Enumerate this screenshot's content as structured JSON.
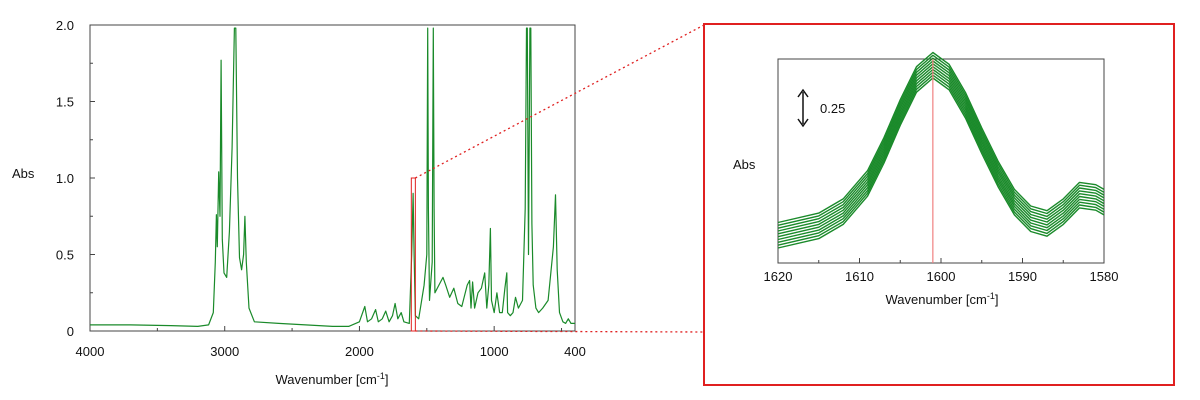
{
  "chart_data": [
    {
      "type": "line",
      "title": "",
      "xlabel": "Wavenumber [cm",
      "xlabel_sup": "-1",
      "xlabel_end": "]",
      "ylabel": "Abs",
      "xlim": [
        4000,
        400
      ],
      "ylim": [
        0,
        2.0
      ],
      "x_ticks": [
        "4000",
        "3000",
        "2000",
        "1000",
        "400"
      ],
      "x_tick_values": [
        4000,
        3000,
        2000,
        1000,
        400
      ],
      "y_ticks": [
        "0",
        "0.5",
        "1.0",
        "1.5",
        "2.0"
      ],
      "y_tick_values": [
        0,
        0.5,
        1.0,
        1.5,
        2.0
      ],
      "grid": false,
      "series": [
        {
          "color": "#1a8a2a",
          "points": [
            [
              4000,
              0.04
            ],
            [
              3700,
              0.04
            ],
            [
              3400,
              0.035
            ],
            [
              3200,
              0.03
            ],
            [
              3120,
              0.04
            ],
            [
              3085,
              0.12
            ],
            [
              3070,
              0.45
            ],
            [
              3062,
              0.76
            ],
            [
              3055,
              0.55
            ],
            [
              3045,
              1.04
            ],
            [
              3035,
              0.75
            ],
            [
              3027,
              1.77
            ],
            [
              3018,
              0.6
            ],
            [
              3005,
              0.38
            ],
            [
              2985,
              0.35
            ],
            [
              2965,
              0.65
            ],
            [
              2945,
              1.2
            ],
            [
              2928,
              1.98
            ],
            [
              2918,
              1.98
            ],
            [
              2905,
              1.0
            ],
            [
              2890,
              0.48
            ],
            [
              2875,
              0.4
            ],
            [
              2860,
              0.5
            ],
            [
              2850,
              0.75
            ],
            [
              2840,
              0.45
            ],
            [
              2820,
              0.15
            ],
            [
              2780,
              0.06
            ],
            [
              2600,
              0.05
            ],
            [
              2400,
              0.04
            ],
            [
              2200,
              0.03
            ],
            [
              2080,
              0.03
            ],
            [
              2000,
              0.06
            ],
            [
              1960,
              0.16
            ],
            [
              1940,
              0.06
            ],
            [
              1910,
              0.08
            ],
            [
              1880,
              0.14
            ],
            [
              1860,
              0.06
            ],
            [
              1830,
              0.08
            ],
            [
              1805,
              0.13
            ],
            [
              1780,
              0.06
            ],
            [
              1755,
              0.1
            ],
            [
              1735,
              0.18
            ],
            [
              1715,
              0.08
            ],
            [
              1690,
              0.12
            ],
            [
              1670,
              0.06
            ],
            [
              1630,
              0.05
            ],
            [
              1612,
              0.5
            ],
            [
              1602,
              0.9
            ],
            [
              1594,
              0.5
            ],
            [
              1585,
              0.1
            ],
            [
              1560,
              0.08
            ],
            [
              1520,
              0.3
            ],
            [
              1500,
              0.5
            ],
            [
              1493,
              1.98
            ],
            [
              1488,
              0.8
            ],
            [
              1480,
              0.2
            ],
            [
              1460,
              0.45
            ],
            [
              1452,
              1.98
            ],
            [
              1446,
              0.8
            ],
            [
              1440,
              0.25
            ],
            [
              1410,
              0.3
            ],
            [
              1380,
              0.35
            ],
            [
              1360,
              0.3
            ],
            [
              1330,
              0.22
            ],
            [
              1300,
              0.28
            ],
            [
              1270,
              0.18
            ],
            [
              1240,
              0.16
            ],
            [
              1200,
              0.3
            ],
            [
              1182,
              0.33
            ],
            [
              1172,
              0.15
            ],
            [
              1160,
              0.32
            ],
            [
              1145,
              0.15
            ],
            [
              1120,
              0.25
            ],
            [
              1095,
              0.28
            ],
            [
              1070,
              0.38
            ],
            [
              1055,
              0.15
            ],
            [
              1040,
              0.3
            ],
            [
              1028,
              0.67
            ],
            [
              1020,
              0.2
            ],
            [
              1000,
              0.12
            ],
            [
              980,
              0.25
            ],
            [
              960,
              0.12
            ],
            [
              940,
              0.12
            ],
            [
              920,
              0.28
            ],
            [
              906,
              0.38
            ],
            [
              900,
              0.12
            ],
            [
              880,
              0.1
            ],
            [
              860,
              0.12
            ],
            [
              842,
              0.22
            ],
            [
              820,
              0.15
            ],
            [
              790,
              0.2
            ],
            [
              770,
              0.8
            ],
            [
              760,
              1.98
            ],
            [
              754,
              1.98
            ],
            [
              745,
              0.5
            ],
            [
              735,
              1.98
            ],
            [
              728,
              1.98
            ],
            [
              720,
              0.7
            ],
            [
              710,
              0.3
            ],
            [
              690,
              0.15
            ],
            [
              670,
              0.12
            ],
            [
              640,
              0.15
            ],
            [
              600,
              0.2
            ],
            [
              560,
              0.55
            ],
            [
              545,
              0.89
            ],
            [
              532,
              0.4
            ],
            [
              515,
              0.12
            ],
            [
              490,
              0.06
            ],
            [
              470,
              0.05
            ],
            [
              450,
              0.08
            ],
            [
              430,
              0.05
            ],
            [
              400,
              0.05
            ]
          ]
        }
      ],
      "annotations": [
        {
          "type": "zoom-box",
          "x_range": [
            1615,
            1585
          ],
          "y_range": [
            0,
            1.0
          ],
          "color": "#e02020"
        }
      ]
    },
    {
      "type": "line",
      "title": "",
      "xlabel": "Wavenumber [cm",
      "xlabel_sup": "-1",
      "xlabel_end": "]",
      "ylabel": "Abs",
      "xlim": [
        1620,
        1580
      ],
      "x_ticks": [
        "1620",
        "1610",
        "1600",
        "1590",
        "1580"
      ],
      "x_tick_values": [
        1620,
        1610,
        1600,
        1590,
        1580
      ],
      "grid": false,
      "scale_bar_label": "0.25",
      "scale_bar_value": 0.25,
      "reference_line_x": 1601,
      "reference_line_color": "#f08080",
      "series": [
        {
          "color": "#1a8a2a",
          "offset": 0.0
        },
        {
          "color": "#1a8a2a",
          "offset": 0.05
        },
        {
          "color": "#1a8a2a",
          "offset": 0.1
        },
        {
          "color": "#1a8a2a",
          "offset": 0.15
        },
        {
          "color": "#1a8a2a",
          "offset": 0.2
        },
        {
          "color": "#1a8a2a",
          "offset": 0.25
        },
        {
          "color": "#1a8a2a",
          "offset": 0.3
        },
        {
          "color": "#1a8a2a",
          "offset": 0.35
        },
        {
          "color": "#1a8a2a",
          "offset": 0.4
        },
        {
          "color": "#1a8a2a",
          "offset": 0.45
        }
      ],
      "base_curve": [
        [
          1620,
          0.3
        ],
        [
          1615,
          0.34
        ],
        [
          1612,
          0.4
        ],
        [
          1609,
          0.52
        ],
        [
          1607,
          0.66
        ],
        [
          1605,
          0.82
        ],
        [
          1603,
          0.96
        ],
        [
          1601,
          1.02
        ],
        [
          1599,
          0.97
        ],
        [
          1597,
          0.85
        ],
        [
          1595,
          0.7
        ],
        [
          1593,
          0.56
        ],
        [
          1591,
          0.44
        ],
        [
          1589,
          0.37
        ],
        [
          1587,
          0.35
        ],
        [
          1585,
          0.4
        ],
        [
          1583,
          0.47
        ],
        [
          1581,
          0.46
        ],
        [
          1580,
          0.44
        ]
      ]
    }
  ],
  "colors": {
    "series": "#1a8a2a",
    "zoom": "#e02020",
    "reference": "#f08080"
  }
}
